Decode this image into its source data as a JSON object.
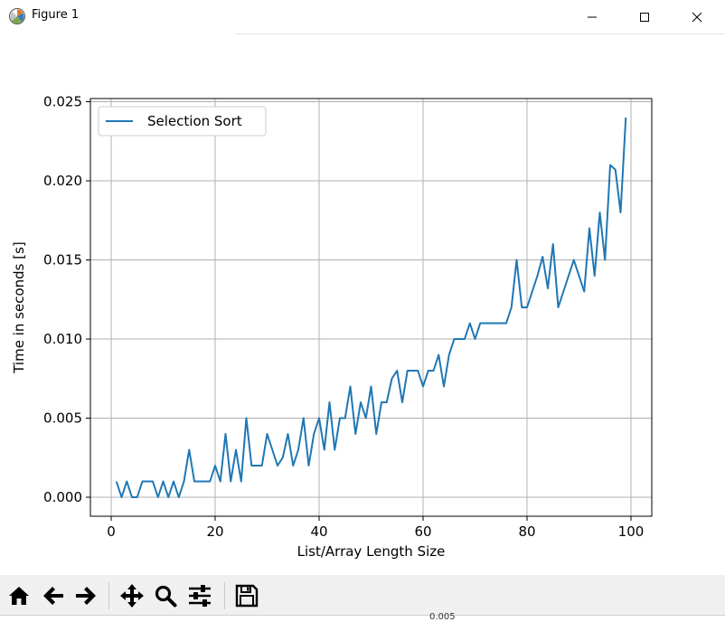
{
  "window": {
    "title": "Figure 1",
    "icons": {
      "app": "matplotlib-icon",
      "minimize": "minimize-icon",
      "maximize": "maximize-icon",
      "close": "close-icon"
    }
  },
  "chart_data": {
    "type": "line",
    "title": "",
    "xlabel": "List/Array Length Size",
    "ylabel": "Time in seconds [s]",
    "xlim": [
      -4,
      104
    ],
    "ylim": [
      -0.0012,
      0.0252
    ],
    "x_ticks": [
      0,
      20,
      40,
      60,
      80,
      100
    ],
    "x_tick_labels": [
      "0",
      "20",
      "40",
      "60",
      "80",
      "100"
    ],
    "y_ticks": [
      0.0,
      0.005,
      0.01,
      0.015,
      0.02,
      0.025
    ],
    "y_tick_labels": [
      "0.000",
      "0.005",
      "0.010",
      "0.015",
      "0.020",
      "0.025"
    ],
    "grid": true,
    "legend": {
      "placement": "upper-left",
      "entries": [
        "Selection Sort"
      ]
    },
    "series": [
      {
        "name": "Selection Sort",
        "color": "#1f77b4",
        "x": [
          1,
          2,
          3,
          4,
          5,
          6,
          7,
          8,
          9,
          10,
          11,
          12,
          13,
          14,
          15,
          16,
          17,
          18,
          19,
          20,
          21,
          22,
          23,
          24,
          25,
          26,
          27,
          28,
          29,
          30,
          31,
          32,
          33,
          34,
          35,
          36,
          37,
          38,
          39,
          40,
          41,
          42,
          43,
          44,
          45,
          46,
          47,
          48,
          49,
          50,
          51,
          52,
          53,
          54,
          55,
          56,
          57,
          58,
          59,
          60,
          61,
          62,
          63,
          64,
          65,
          66,
          67,
          68,
          69,
          70,
          71,
          72,
          73,
          74,
          75,
          76,
          77,
          78,
          79,
          80,
          81,
          82,
          83,
          84,
          85,
          86,
          87,
          88,
          89,
          90,
          91,
          92,
          93,
          94,
          95,
          96,
          97,
          98,
          99
        ],
        "y": [
          0.001,
          0.0,
          0.001,
          0.0,
          0.0,
          0.001,
          0.001,
          0.001,
          0.0,
          0.001,
          0.0,
          0.001,
          0.0,
          0.001,
          0.003,
          0.001,
          0.001,
          0.001,
          0.001,
          0.002,
          0.001,
          0.004,
          0.001,
          0.003,
          0.001,
          0.005,
          0.002,
          0.002,
          0.002,
          0.004,
          0.003,
          0.002,
          0.0025,
          0.004,
          0.002,
          0.003,
          0.005,
          0.002,
          0.004,
          0.005,
          0.003,
          0.006,
          0.003,
          0.005,
          0.005,
          0.007,
          0.004,
          0.006,
          0.005,
          0.007,
          0.004,
          0.006,
          0.006,
          0.0075,
          0.008,
          0.006,
          0.008,
          0.008,
          0.008,
          0.007,
          0.008,
          0.008,
          0.009,
          0.007,
          0.009,
          0.01,
          0.01,
          0.01,
          0.011,
          0.01,
          0.011,
          0.011,
          0.011,
          0.011,
          0.011,
          0.011,
          0.012,
          0.015,
          0.012,
          0.012,
          0.013,
          0.014,
          0.0152,
          0.0132,
          0.016,
          0.012,
          0.013,
          0.014,
          0.015,
          0.014,
          0.013,
          0.017,
          0.014,
          0.018,
          0.015,
          0.021,
          0.0207,
          0.018,
          0.024
        ]
      }
    ]
  },
  "toolbar": {
    "buttons": [
      {
        "name": "home-button",
        "icon": "home-icon"
      },
      {
        "name": "back-button",
        "icon": "arrow-left-icon"
      },
      {
        "name": "forward-button",
        "icon": "arrow-right-icon"
      },
      {
        "name": "pan-button",
        "icon": "move-icon"
      },
      {
        "name": "zoom-button",
        "icon": "magnifier-icon"
      },
      {
        "name": "configure-subplots-button",
        "icon": "sliders-icon"
      },
      {
        "name": "save-button",
        "icon": "floppy-disk-icon"
      }
    ]
  },
  "status": {
    "partial_text": "0.005"
  }
}
